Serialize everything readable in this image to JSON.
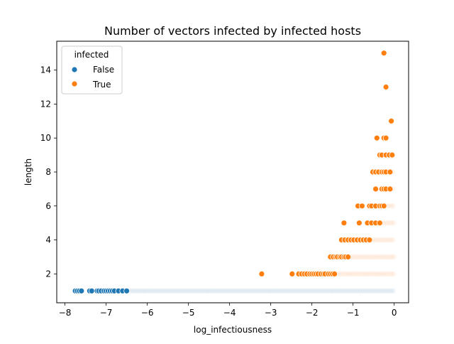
{
  "chart_data": {
    "type": "scatter",
    "title": "Number of vectors infected by infected hosts",
    "xlabel": "log_infectiousness",
    "ylabel": "length",
    "xlim": [
      -8.2,
      0.35
    ],
    "ylim": [
      0.3,
      15.7
    ],
    "x_ticks": [
      -8,
      -7,
      -6,
      -5,
      -4,
      -3,
      -2,
      -1,
      0
    ],
    "x_tick_labels": [
      "−8",
      "−7",
      "−6",
      "−5",
      "−4",
      "−3",
      "−2",
      "−1",
      "0"
    ],
    "y_ticks": [
      2,
      4,
      6,
      8,
      10,
      12,
      14
    ],
    "y_tick_labels": [
      "2",
      "4",
      "6",
      "8",
      "10",
      "12",
      "14"
    ],
    "grid": false,
    "legend": {
      "title": "infected",
      "placement": "top-left",
      "entries": [
        {
          "label": "False",
          "color": "#1f77b4"
        },
        {
          "label": "True",
          "color": "#ff7f0e"
        }
      ]
    },
    "series": [
      {
        "name": "False",
        "color": "#1f77b4",
        "points": [
          [
            -7.75,
            1
          ],
          [
            -7.7,
            1
          ],
          [
            -7.65,
            1
          ],
          [
            -7.6,
            1
          ],
          [
            -7.4,
            1
          ],
          [
            -7.35,
            1
          ],
          [
            -7.22,
            1
          ],
          [
            -7.18,
            1
          ],
          [
            -7.12,
            1
          ],
          [
            -7.05,
            1
          ],
          [
            -7.0,
            1
          ],
          [
            -6.95,
            1
          ],
          [
            -6.9,
            1
          ],
          [
            -6.85,
            1
          ],
          [
            -6.8,
            1
          ],
          [
            -6.7,
            1
          ],
          [
            -6.6,
            1
          ],
          [
            -6.5,
            1
          ]
        ],
        "dense_ranges": [
          {
            "y": 1,
            "x_from": -7.0,
            "x_to": 0.0
          }
        ]
      },
      {
        "name": "True",
        "color": "#ff7f0e",
        "points": [
          [
            -0.25,
            15
          ],
          [
            -0.2,
            13
          ],
          [
            -0.07,
            11
          ],
          [
            -0.42,
            10
          ],
          [
            -0.25,
            10
          ],
          [
            -0.2,
            10
          ],
          [
            -0.35,
            9
          ],
          [
            -0.3,
            9
          ],
          [
            -0.2,
            9
          ],
          [
            -0.12,
            9
          ],
          [
            -0.05,
            9
          ],
          [
            -0.52,
            8
          ],
          [
            -0.45,
            8
          ],
          [
            -0.38,
            8
          ],
          [
            -0.3,
            8
          ],
          [
            -0.25,
            8
          ],
          [
            -0.2,
            8
          ],
          [
            -0.1,
            8
          ],
          [
            -0.45,
            7
          ],
          [
            -0.3,
            7
          ],
          [
            -0.25,
            7
          ],
          [
            -0.2,
            7
          ],
          [
            -0.1,
            7
          ],
          [
            -0.88,
            6
          ],
          [
            -0.78,
            6
          ],
          [
            -0.6,
            6
          ],
          [
            -0.55,
            6
          ],
          [
            -0.45,
            6
          ],
          [
            -0.35,
            6
          ],
          [
            -0.3,
            6
          ],
          [
            -0.25,
            6
          ],
          [
            -1.22,
            5
          ],
          [
            -0.85,
            5
          ],
          [
            -0.65,
            5
          ],
          [
            -0.55,
            5
          ],
          [
            -0.45,
            5
          ],
          [
            -0.35,
            5
          ],
          [
            -1.28,
            4
          ],
          [
            -1.2,
            4
          ],
          [
            -1.12,
            4
          ],
          [
            -1.05,
            4
          ],
          [
            -0.98,
            4
          ],
          [
            -0.9,
            4
          ],
          [
            -0.82,
            4
          ],
          [
            -0.75,
            4
          ],
          [
            -0.68,
            4
          ],
          [
            -0.6,
            4
          ],
          [
            -1.55,
            3
          ],
          [
            -1.48,
            3
          ],
          [
            -1.42,
            3
          ],
          [
            -1.38,
            3
          ],
          [
            -1.32,
            3
          ],
          [
            -1.28,
            3
          ],
          [
            -1.22,
            3
          ],
          [
            -1.18,
            3
          ],
          [
            -1.12,
            3
          ],
          [
            -3.22,
            2
          ],
          [
            -2.48,
            2
          ],
          [
            -2.32,
            2
          ],
          [
            -2.25,
            2
          ],
          [
            -2.18,
            2
          ],
          [
            -2.12,
            2
          ],
          [
            -2.05,
            2
          ],
          [
            -2.0,
            2
          ],
          [
            -1.95,
            2
          ],
          [
            -1.9,
            2
          ],
          [
            -1.85,
            2
          ],
          [
            -1.78,
            2
          ],
          [
            -1.72,
            2
          ],
          [
            -1.68,
            2
          ],
          [
            -1.6,
            2
          ],
          [
            -1.55,
            2
          ],
          [
            -1.5,
            2
          ],
          [
            -1.45,
            2
          ]
        ],
        "dense_ranges": [
          {
            "y": 2,
            "x_from": -1.45,
            "x_to": 0.0
          },
          {
            "y": 3,
            "x_from": -1.1,
            "x_to": 0.0
          },
          {
            "y": 4,
            "x_from": -0.6,
            "x_to": 0.0
          },
          {
            "y": 5,
            "x_from": -0.35,
            "x_to": 0.0
          },
          {
            "y": 6,
            "x_from": -0.25,
            "x_to": 0.0
          },
          {
            "y": 7,
            "x_from": -0.1,
            "x_to": 0.0
          },
          {
            "y": 8,
            "x_from": -0.1,
            "x_to": 0.0
          },
          {
            "y": 9,
            "x_from": -0.05,
            "x_to": 0.0
          }
        ]
      }
    ]
  }
}
